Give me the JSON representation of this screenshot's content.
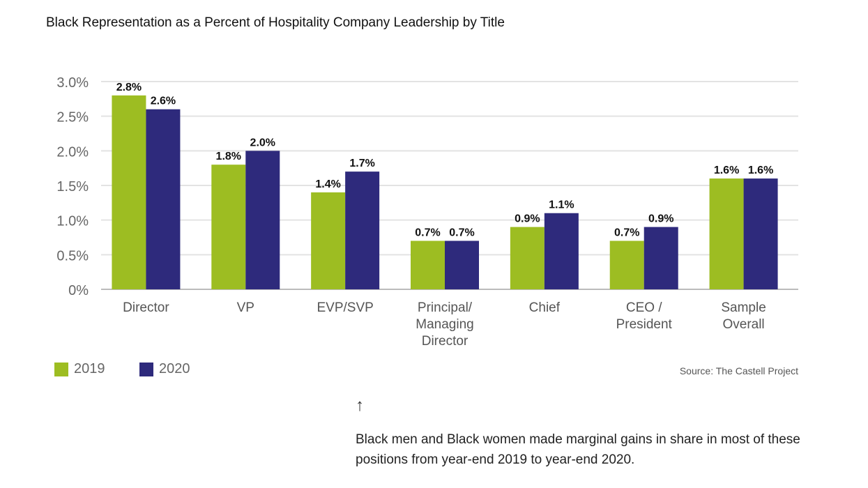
{
  "chart_data": {
    "type": "bar",
    "title": "Black Representation as a Percent of Hospitality Company Leadership by Title",
    "categories": [
      [
        "Director"
      ],
      [
        "VP"
      ],
      [
        "EVP/SVP"
      ],
      [
        "Principal/",
        "Managing",
        "Director"
      ],
      [
        "Chief"
      ],
      [
        "CEO /",
        "President"
      ],
      [
        "Sample",
        "Overall"
      ]
    ],
    "series": [
      {
        "name": "2019",
        "color": "#9dbd22",
        "values": [
          2.8,
          1.8,
          1.4,
          0.7,
          0.9,
          0.7,
          1.6
        ]
      },
      {
        "name": "2020",
        "color": "#2e2a7c",
        "values": [
          2.6,
          2.0,
          1.7,
          0.7,
          1.1,
          0.9,
          1.6
        ]
      }
    ],
    "yticks": [
      0,
      0.5,
      1.0,
      1.5,
      2.0,
      2.5,
      3.0
    ],
    "ytick_labels": [
      "0%",
      "0.5%",
      "1.0%",
      "1.5%",
      "2.0%",
      "2.5%",
      "3.0%"
    ],
    "ylim": [
      0,
      3.0
    ],
    "grid": true,
    "legend": "bottom-left",
    "xlabel": "",
    "ylabel": ""
  },
  "source": "Source: The Castell Project",
  "arrow": "↑",
  "note": "Black men and Black women made marginal gains in share in most of these positions from year-end 2019 to year-end 2020."
}
